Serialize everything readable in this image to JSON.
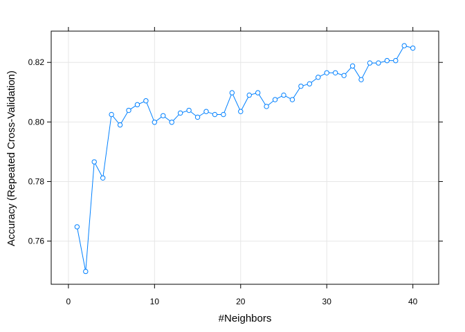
{
  "chart_data": {
    "type": "line",
    "title": "",
    "xlabel": "#Neighbors",
    "ylabel": "Accuracy (Repeated Cross-Validation)",
    "xlim": [
      -2,
      43
    ],
    "ylim": [
      0.7455,
      0.8305
    ],
    "xticks": [
      0,
      10,
      20,
      30,
      40
    ],
    "yticks": [
      0.76,
      0.78,
      0.8,
      0.82
    ],
    "xtick_labels": [
      "0",
      "10",
      "20",
      "30",
      "40"
    ],
    "ytick_labels": [
      "0.76",
      "0.78",
      "0.80",
      "0.82"
    ],
    "grid": true,
    "series_color": "#0080ff",
    "grid_color": "#e6e6e6",
    "series": [
      {
        "x": [
          1,
          2,
          3,
          4,
          5,
          6,
          7,
          8,
          9,
          10,
          11,
          12,
          13,
          14,
          15,
          16,
          17,
          18,
          19,
          20,
          21,
          22,
          23,
          24,
          25,
          26,
          27,
          28,
          29,
          30,
          31,
          32,
          33,
          34,
          35,
          36,
          37,
          38,
          39,
          40
        ],
        "values": [
          0.7648,
          0.7498,
          0.7866,
          0.7812,
          0.8025,
          0.799,
          0.8039,
          0.8058,
          0.8071,
          0.7999,
          0.8021,
          0.7999,
          0.803,
          0.8039,
          0.8016,
          0.8035,
          0.8025,
          0.8025,
          0.8098,
          0.8035,
          0.809,
          0.8098,
          0.8052,
          0.8075,
          0.809,
          0.8075,
          0.812,
          0.8128,
          0.815,
          0.8165,
          0.8165,
          0.8156,
          0.8188,
          0.8142,
          0.8198,
          0.8198,
          0.8206,
          0.8206,
          0.8256,
          0.8248
        ]
      }
    ]
  }
}
